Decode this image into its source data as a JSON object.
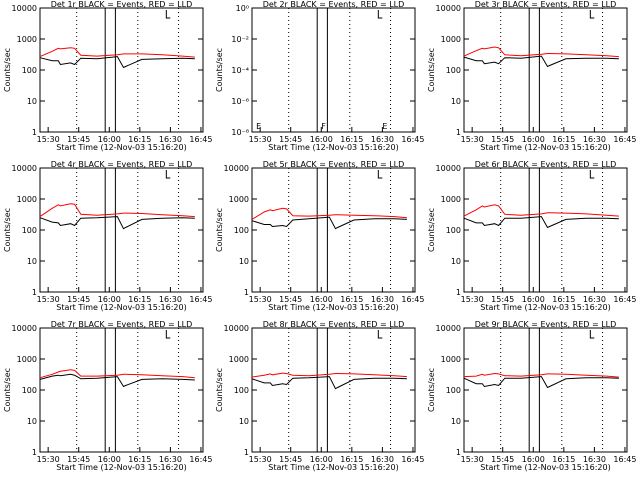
{
  "common": {
    "ylabel": "Counts/sec",
    "xlabel": "Start Time (12-Nov-03 15:16:20)",
    "xticks": [
      "15:30",
      "15:45",
      "16:00",
      "16:15",
      "16:30",
      "16:45"
    ],
    "yticks_counts": [
      "1",
      "10",
      "100",
      "1000",
      "10000"
    ],
    "yticks_tiny": [
      "10⁻⁸",
      "10⁻⁶",
      "10⁻⁴",
      "10⁻²",
      "10⁰"
    ],
    "colors": {
      "events": "#000000",
      "lld": "#ff0000",
      "axes": "#000000"
    }
  },
  "chart_data": [
    {
      "type": "line",
      "title": "Det 1r BLACK = Events, RED = LLD",
      "ylim": [
        1,
        10000
      ],
      "log_y": true,
      "x_minutes": [
        0,
        6,
        9,
        10,
        15,
        17,
        20,
        28,
        38,
        41,
        42,
        50,
        60,
        70,
        76
      ],
      "series": [
        {
          "name": "Events",
          "values": [
            250,
            200,
            200,
            150,
            170,
            150,
            240,
            230,
            270,
            120,
            130,
            220,
            230,
            240,
            230
          ]
        },
        {
          "name": "LLD",
          "values": [
            270,
            400,
            500,
            480,
            520,
            500,
            300,
            280,
            310,
            330,
            330,
            330,
            310,
            280,
            260
          ]
        }
      ]
    },
    {
      "type": "line",
      "title": "Det 2r BLACK = Events, RED = LLD",
      "ylim": [
        1e-08,
        1
      ],
      "log_y": true,
      "x_minutes": [],
      "series": [],
      "annotations": [
        "E",
        "F",
        "E"
      ]
    },
    {
      "type": "line",
      "title": "Det 3r BLACK = Events, RED = LLD",
      "ylim": [
        1,
        10000
      ],
      "log_y": true,
      "x_minutes": [
        0,
        6,
        9,
        10,
        15,
        17,
        20,
        28,
        38,
        41,
        42,
        50,
        60,
        70,
        76
      ],
      "series": [
        {
          "name": "Events",
          "values": [
            260,
            200,
            200,
            160,
            180,
            160,
            250,
            240,
            280,
            130,
            140,
            230,
            240,
            240,
            230
          ]
        },
        {
          "name": "LLD",
          "values": [
            280,
            420,
            500,
            480,
            550,
            520,
            310,
            290,
            320,
            340,
            340,
            330,
            310,
            290,
            270
          ]
        }
      ]
    },
    {
      "type": "line",
      "title": "Det 4r BLACK = Events, RED = LLD",
      "ylim": [
        1,
        10000
      ],
      "log_y": true,
      "x_minutes": [
        0,
        6,
        9,
        10,
        15,
        17,
        20,
        28,
        38,
        41,
        42,
        50,
        60,
        70,
        76
      ],
      "series": [
        {
          "name": "Events",
          "values": [
            250,
            180,
            170,
            140,
            160,
            140,
            240,
            250,
            270,
            110,
            120,
            220,
            240,
            250,
            240
          ]
        },
        {
          "name": "LLD",
          "values": [
            270,
            500,
            650,
            600,
            700,
            680,
            320,
            300,
            330,
            350,
            350,
            340,
            310,
            290,
            270
          ]
        }
      ]
    },
    {
      "type": "line",
      "title": "Det 5r BLACK = Events, RED = LLD",
      "ylim": [
        1,
        10000
      ],
      "log_y": true,
      "x_minutes": [
        0,
        6,
        9,
        10,
        15,
        17,
        20,
        28,
        38,
        41,
        42,
        50,
        60,
        70,
        76
      ],
      "series": [
        {
          "name": "Events",
          "values": [
            200,
            150,
            150,
            130,
            140,
            130,
            210,
            230,
            260,
            110,
            120,
            210,
            230,
            230,
            220
          ]
        },
        {
          "name": "LLD",
          "values": [
            220,
            380,
            450,
            420,
            500,
            480,
            290,
            280,
            300,
            310,
            310,
            300,
            290,
            270,
            250
          ]
        }
      ]
    },
    {
      "type": "line",
      "title": "Det 6r BLACK = Events, RED = LLD",
      "ylim": [
        1,
        10000
      ],
      "log_y": true,
      "x_minutes": [
        0,
        6,
        9,
        10,
        15,
        17,
        20,
        28,
        38,
        41,
        42,
        50,
        60,
        70,
        76
      ],
      "series": [
        {
          "name": "Events",
          "values": [
            240,
            170,
            170,
            140,
            160,
            140,
            240,
            240,
            270,
            120,
            130,
            220,
            240,
            240,
            230
          ]
        },
        {
          "name": "LLD",
          "values": [
            280,
            450,
            600,
            550,
            650,
            600,
            320,
            300,
            330,
            360,
            360,
            350,
            330,
            300,
            280
          ]
        }
      ]
    },
    {
      "type": "line",
      "title": "Det 7r BLACK = Events, RED = LLD",
      "ylim": [
        1,
        10000
      ],
      "log_y": true,
      "x_minutes": [
        0,
        6,
        9,
        10,
        15,
        17,
        20,
        28,
        38,
        41,
        42,
        50,
        60,
        70,
        76
      ],
      "series": [
        {
          "name": "Events",
          "values": [
            220,
            280,
            300,
            290,
            320,
            300,
            230,
            240,
            270,
            130,
            140,
            220,
            230,
            220,
            210
          ]
        },
        {
          "name": "LLD",
          "values": [
            250,
            320,
            380,
            400,
            450,
            430,
            280,
            280,
            300,
            320,
            320,
            310,
            290,
            270,
            250
          ]
        }
      ]
    },
    {
      "type": "line",
      "title": "Det 8r BLACK = Events, RED = LLD",
      "ylim": [
        1,
        10000
      ],
      "log_y": true,
      "x_minutes": [
        0,
        6,
        9,
        10,
        15,
        17,
        20,
        28,
        38,
        41,
        42,
        50,
        60,
        70,
        76
      ],
      "series": [
        {
          "name": "Events",
          "values": [
            230,
            170,
            170,
            140,
            160,
            150,
            240,
            250,
            270,
            110,
            120,
            220,
            240,
            240,
            230
          ]
        },
        {
          "name": "LLD",
          "values": [
            260,
            300,
            330,
            310,
            350,
            340,
            300,
            290,
            320,
            340,
            340,
            330,
            310,
            290,
            270
          ]
        }
      ]
    },
    {
      "type": "line",
      "title": "Det 9r BLACK = Events, RED = LLD",
      "ylim": [
        1,
        10000
      ],
      "log_y": true,
      "x_minutes": [
        0,
        6,
        9,
        10,
        15,
        17,
        20,
        28,
        38,
        41,
        42,
        50,
        60,
        70,
        76
      ],
      "series": [
        {
          "name": "Events",
          "values": [
            240,
            160,
            160,
            130,
            150,
            140,
            240,
            240,
            270,
            120,
            130,
            230,
            250,
            250,
            240
          ]
        },
        {
          "name": "LLD",
          "values": [
            270,
            280,
            320,
            300,
            340,
            330,
            290,
            280,
            310,
            330,
            330,
            320,
            300,
            280,
            260
          ]
        }
      ]
    }
  ]
}
